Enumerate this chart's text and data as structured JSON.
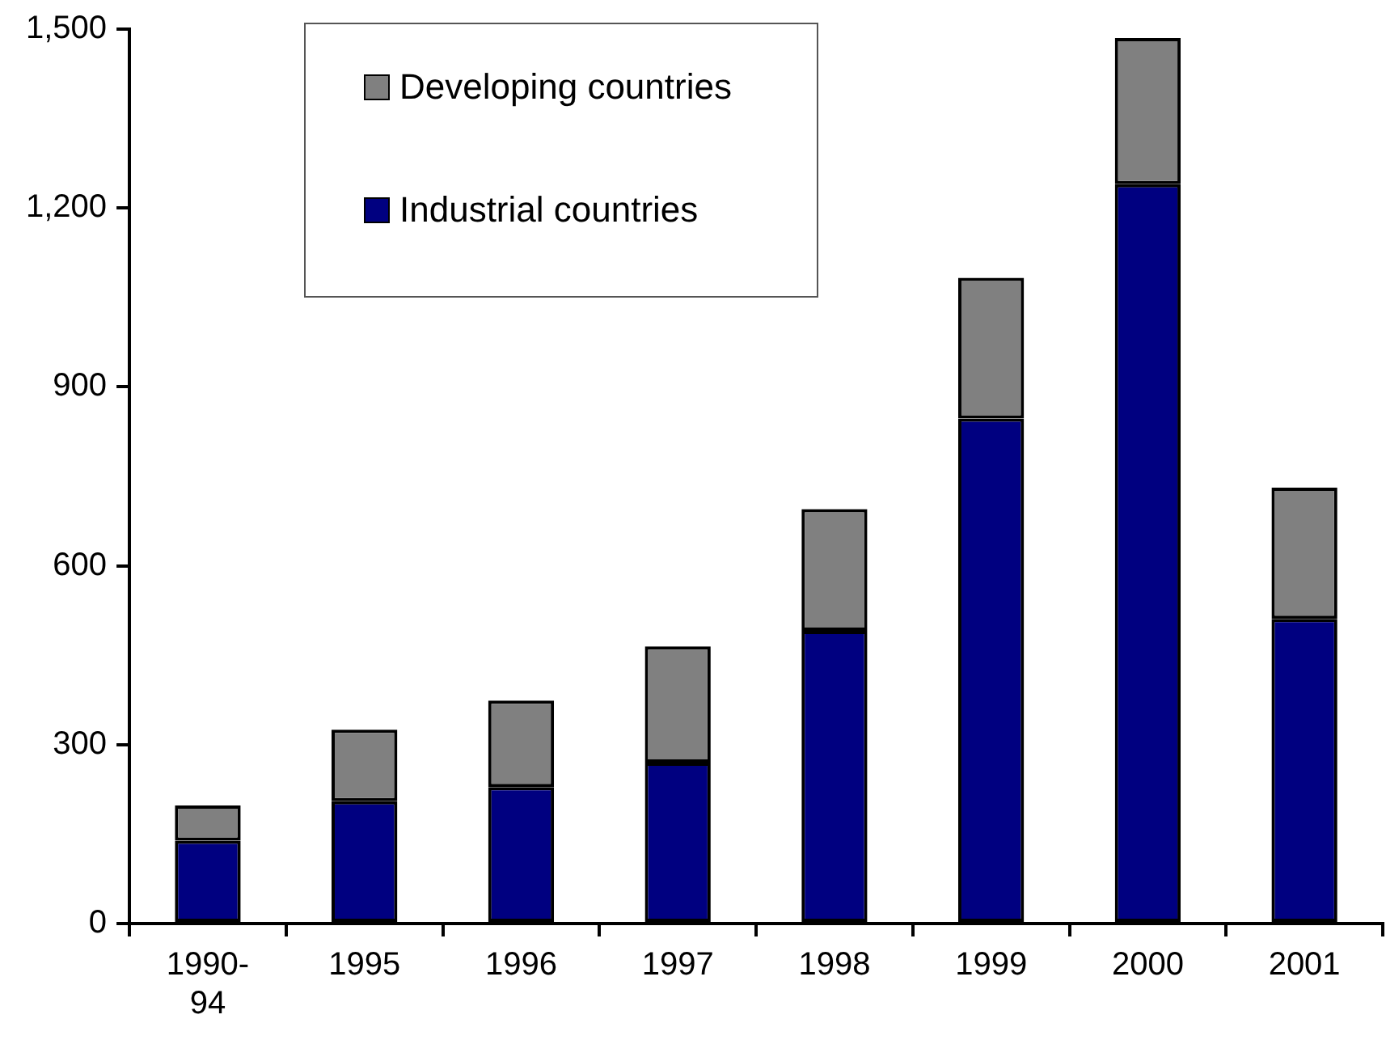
{
  "chart_data": {
    "type": "bar",
    "stacked": true,
    "categories": [
      "1990-94",
      "1995",
      "1996",
      "1997",
      "1998",
      "1999",
      "2000",
      "2001"
    ],
    "series": [
      {
        "name": "Industrial countries",
        "color": "#000080",
        "values": [
          139,
          205,
          229,
          270,
          491,
          847,
          1240,
          511
        ]
      },
      {
        "name": "Developing countries",
        "color": "#808080",
        "values": [
          59,
          120,
          145,
          195,
          204,
          236,
          245,
          220
        ]
      }
    ],
    "ylim": [
      0,
      1500
    ],
    "yticks": [
      0,
      300,
      600,
      900,
      {
        "value": 1200,
        "label": "1,200"
      },
      {
        "value": 1500,
        "label": "1,500"
      }
    ],
    "grid": false,
    "legend": "top left"
  }
}
